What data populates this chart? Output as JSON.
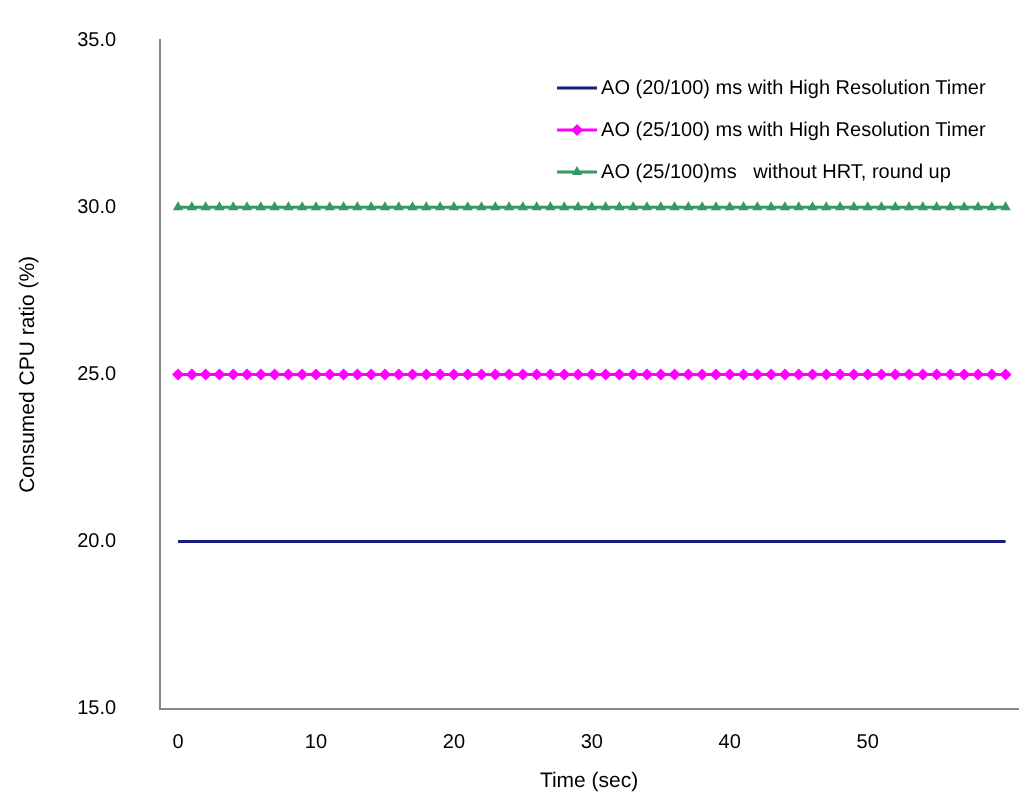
{
  "chart_data": {
    "type": "line",
    "xlabel": "Time (sec)",
    "ylabel": "Consumed CPU ratio (%)",
    "x": [
      0,
      1,
      2,
      3,
      4,
      5,
      6,
      7,
      8,
      9,
      10,
      11,
      12,
      13,
      14,
      15,
      16,
      17,
      18,
      19,
      20,
      21,
      22,
      23,
      24,
      25,
      26,
      27,
      28,
      29,
      30,
      31,
      32,
      33,
      34,
      35,
      36,
      37,
      38,
      39,
      40,
      41,
      42,
      43,
      44,
      45,
      46,
      47,
      48,
      49,
      50,
      51,
      52,
      53,
      54,
      55,
      56,
      57,
      58,
      59,
      60
    ],
    "series": [
      {
        "name": "AO (20/100) ms with High Resolution Timer",
        "color": "#1c1c80",
        "marker": "none",
        "values": [
          20,
          20,
          20,
          20,
          20,
          20,
          20,
          20,
          20,
          20,
          20,
          20,
          20,
          20,
          20,
          20,
          20,
          20,
          20,
          20,
          20,
          20,
          20,
          20,
          20,
          20,
          20,
          20,
          20,
          20,
          20,
          20,
          20,
          20,
          20,
          20,
          20,
          20,
          20,
          20,
          20,
          20,
          20,
          20,
          20,
          20,
          20,
          20,
          20,
          20,
          20,
          20,
          20,
          20,
          20,
          20,
          20,
          20,
          20,
          20,
          20
        ]
      },
      {
        "name": "AO (25/100) ms with High Resolution Timer",
        "color": "#ff00ff",
        "marker": "diamond",
        "values": [
          25,
          25,
          25,
          25,
          25,
          25,
          25,
          25,
          25,
          25,
          25,
          25,
          25,
          25,
          25,
          25,
          25,
          25,
          25,
          25,
          25,
          25,
          25,
          25,
          25,
          25,
          25,
          25,
          25,
          25,
          25,
          25,
          25,
          25,
          25,
          25,
          25,
          25,
          25,
          25,
          25,
          25,
          25,
          25,
          25,
          25,
          25,
          25,
          25,
          25,
          25,
          25,
          25,
          25,
          25,
          25,
          25,
          25,
          25,
          25,
          25
        ]
      },
      {
        "name": "AO (25/100)ms   without HRT, round up",
        "color": "#339966",
        "marker": "triangle",
        "values": [
          30,
          30,
          30,
          30,
          30,
          30,
          30,
          30,
          30,
          30,
          30,
          30,
          30,
          30,
          30,
          30,
          30,
          30,
          30,
          30,
          30,
          30,
          30,
          30,
          30,
          30,
          30,
          30,
          30,
          30,
          30,
          30,
          30,
          30,
          30,
          30,
          30,
          30,
          30,
          30,
          30,
          30,
          30,
          30,
          30,
          30,
          30,
          30,
          30,
          30,
          30,
          30,
          30,
          30,
          30,
          30,
          30,
          30,
          30,
          30,
          30
        ]
      }
    ],
    "xlim": [
      -1.3,
      60.9
    ],
    "xticks": [
      0,
      10,
      20,
      30,
      40,
      50
    ],
    "ylim": [
      15,
      35
    ],
    "yticks": [
      {
        "value": 15,
        "label": "15.0"
      },
      {
        "value": 20,
        "label": "20.0"
      },
      {
        "value": 25,
        "label": "25.0"
      },
      {
        "value": 30,
        "label": "30.0"
      },
      {
        "value": 35,
        "label": "35.0"
      }
    ],
    "grid": false,
    "legend": "top right"
  }
}
